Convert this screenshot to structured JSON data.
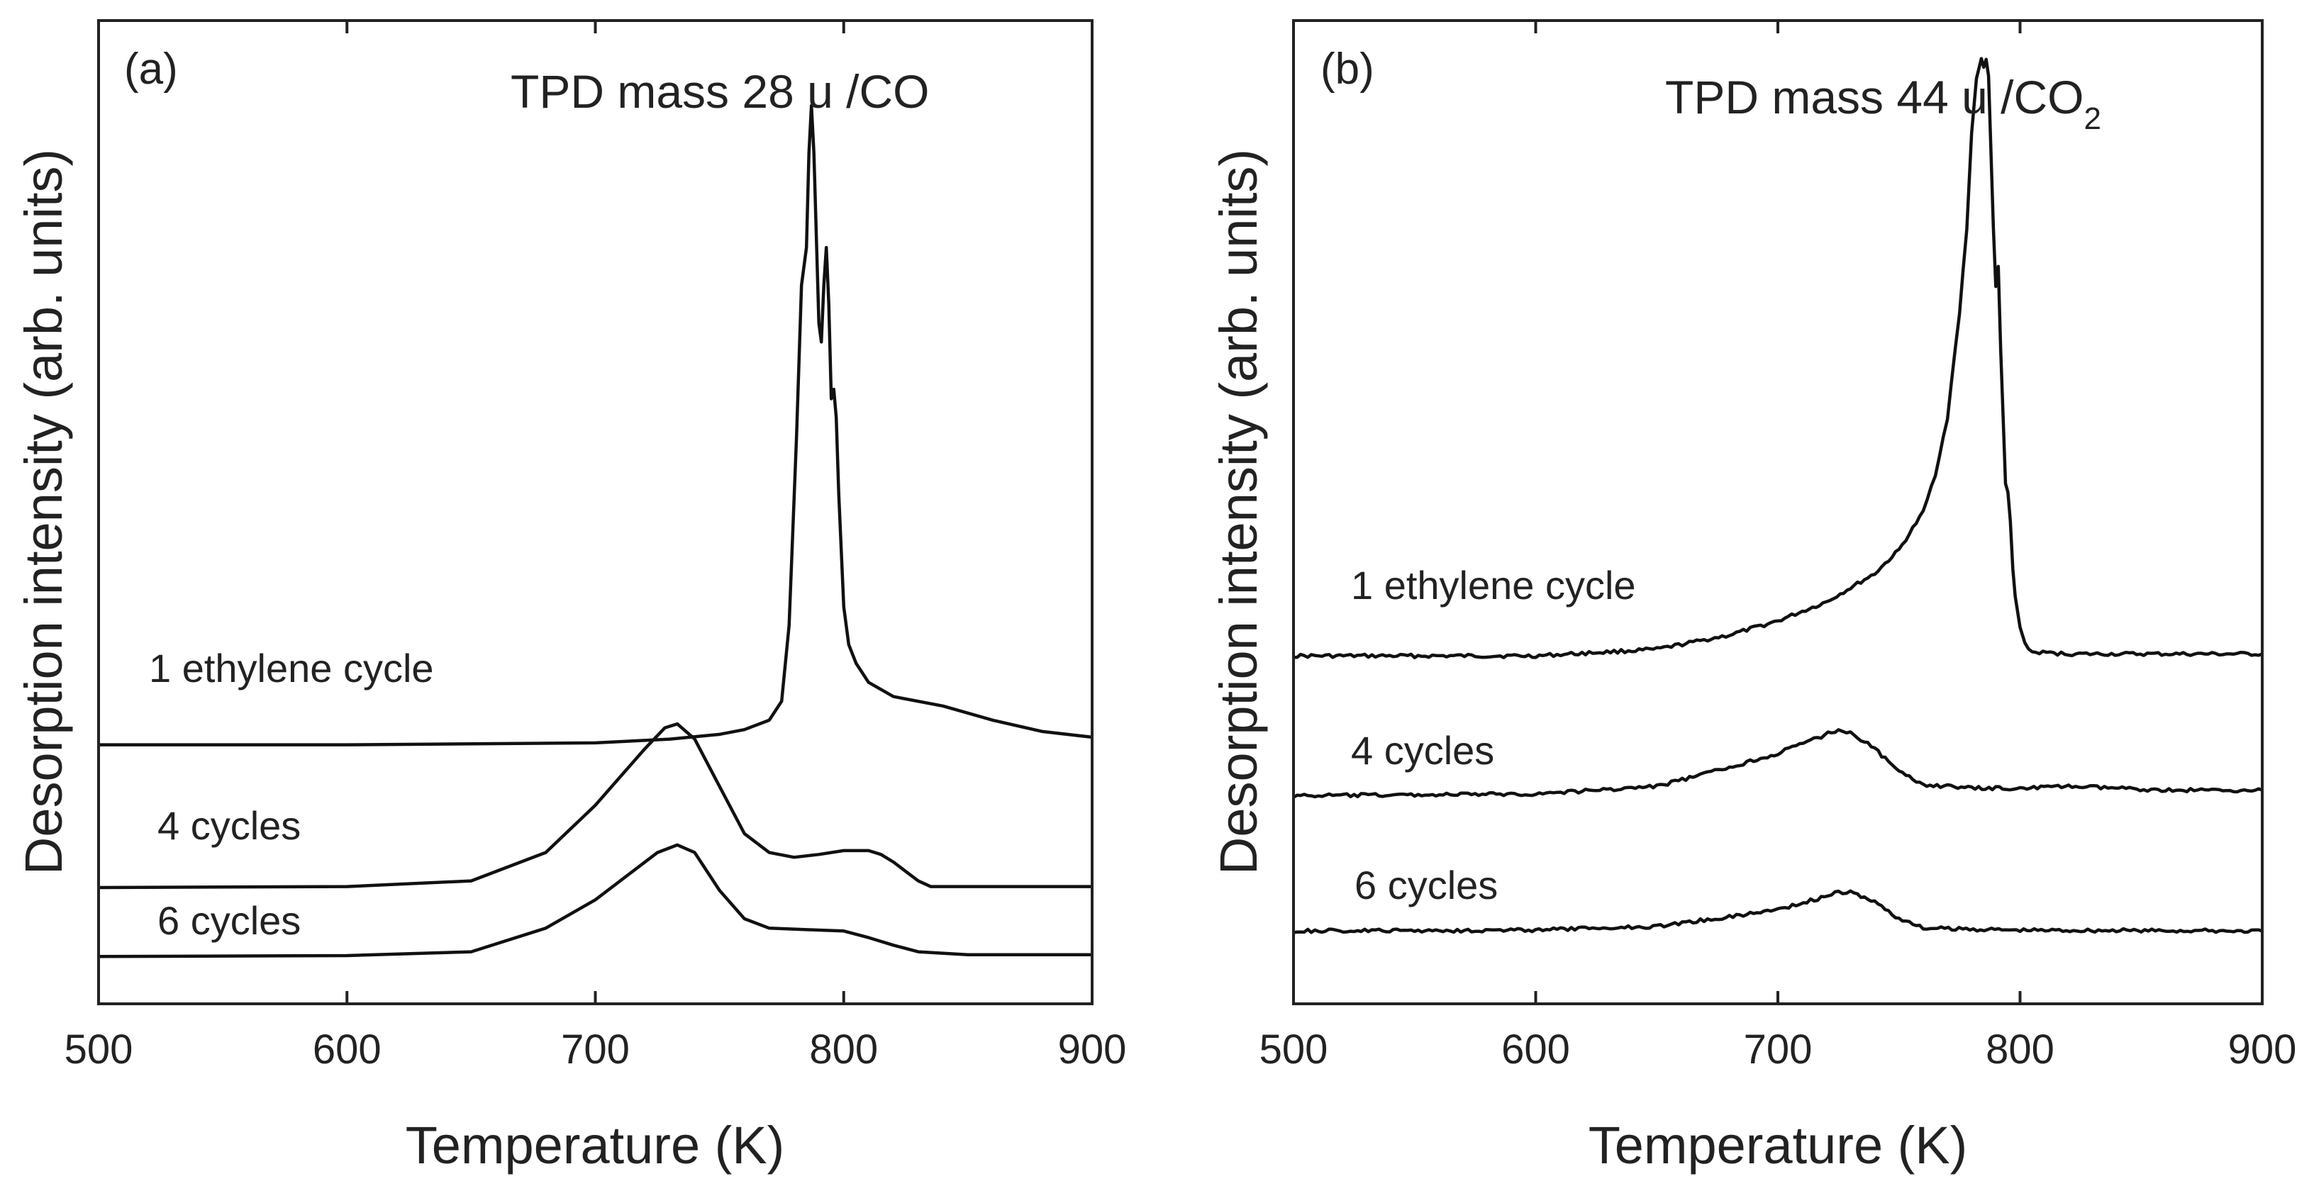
{
  "chart_data": [
    {
      "panel": "(a)",
      "type": "line",
      "title": "TPD mass 28 u /CO",
      "xlabel": "Temperature (K)",
      "ylabel": "Desorption intensity (arb. units)",
      "xlim": [
        500,
        900
      ],
      "ylim": [
        0,
        1.04
      ],
      "xticks": [
        500,
        600,
        700,
        800,
        900
      ],
      "y_ticks_shown": false,
      "series": [
        {
          "name": "1 ethylene cycle",
          "x": [
            500,
            600,
            700,
            730,
            750,
            760,
            770,
            775,
            778,
            781,
            783,
            785,
            786,
            787,
            788,
            790,
            791,
            792,
            793,
            794,
            795,
            796,
            797,
            798,
            800,
            802,
            805,
            810,
            820,
            840,
            860,
            880,
            900
          ],
          "y": [
            0.274,
            0.274,
            0.276,
            0.28,
            0.285,
            0.29,
            0.3,
            0.32,
            0.4,
            0.6,
            0.76,
            0.8,
            0.9,
            0.95,
            0.9,
            0.72,
            0.7,
            0.76,
            0.8,
            0.74,
            0.64,
            0.65,
            0.62,
            0.54,
            0.42,
            0.38,
            0.36,
            0.34,
            0.325,
            0.315,
            0.3,
            0.288,
            0.282
          ]
        },
        {
          "name": "4 cycles",
          "x": [
            500,
            600,
            650,
            680,
            700,
            710,
            720,
            728,
            733,
            740,
            750,
            760,
            770,
            780,
            790,
            800,
            810,
            815,
            820,
            825,
            830,
            835,
            850,
            900
          ],
          "y": [
            0.123,
            0.124,
            0.13,
            0.16,
            0.21,
            0.24,
            0.27,
            0.292,
            0.296,
            0.28,
            0.23,
            0.18,
            0.16,
            0.155,
            0.158,
            0.162,
            0.162,
            0.158,
            0.15,
            0.14,
            0.13,
            0.124,
            0.124,
            0.124
          ]
        },
        {
          "name": "6 cycles",
          "x": [
            500,
            600,
            650,
            680,
            700,
            715,
            725,
            733,
            740,
            750,
            760,
            770,
            790,
            800,
            810,
            820,
            830,
            850,
            900
          ],
          "y": [
            0.05,
            0.051,
            0.055,
            0.08,
            0.11,
            0.14,
            0.16,
            0.168,
            0.16,
            0.12,
            0.09,
            0.08,
            0.078,
            0.077,
            0.07,
            0.062,
            0.055,
            0.052,
            0.052
          ]
        }
      ],
      "annotations": [
        {
          "text": "(a)"
        },
        {
          "text": "1 ethylene cycle"
        },
        {
          "text": "4 cycles"
        },
        {
          "text": "6 cycles"
        }
      ]
    },
    {
      "panel": "(b)",
      "type": "line",
      "title": "TPD mass 44 u /CO2",
      "title_main": "TPD mass 44 u /CO",
      "title_subscript": "2",
      "xlabel": "Temperature (K)",
      "ylabel": "Desorption intensity (arb. units)",
      "xlim": [
        500,
        900
      ],
      "ylim": [
        0,
        1.04
      ],
      "xticks": [
        500,
        600,
        700,
        800,
        900
      ],
      "y_ticks_shown": false,
      "series": [
        {
          "name": "1 ethylene cycle",
          "x": [
            500,
            600,
            650,
            680,
            700,
            720,
            740,
            750,
            760,
            765,
            770,
            775,
            778,
            780,
            782,
            784,
            785,
            786,
            787,
            788,
            789,
            790,
            791,
            792,
            793,
            794,
            795,
            796,
            797,
            798,
            800,
            802,
            805,
            820,
            860,
            900
          ],
          "y": [
            0.368,
            0.368,
            0.375,
            0.39,
            0.405,
            0.425,
            0.455,
            0.48,
            0.52,
            0.56,
            0.62,
            0.73,
            0.82,
            0.92,
            0.98,
            1.0,
            0.99,
            1.0,
            0.98,
            0.9,
            0.82,
            0.76,
            0.78,
            0.69,
            0.62,
            0.55,
            0.54,
            0.51,
            0.46,
            0.43,
            0.4,
            0.38,
            0.372,
            0.37,
            0.37,
            0.37
          ]
        },
        {
          "name": "4 cycles",
          "x": [
            500,
            600,
            650,
            680,
            700,
            715,
            725,
            730,
            740,
            750,
            760,
            780,
            800,
            820,
            860,
            900
          ],
          "y": [
            0.22,
            0.222,
            0.23,
            0.25,
            0.265,
            0.28,
            0.29,
            0.287,
            0.27,
            0.245,
            0.232,
            0.228,
            0.228,
            0.23,
            0.226,
            0.226
          ]
        },
        {
          "name": "6 cycles",
          "x": [
            500,
            600,
            650,
            680,
            700,
            715,
            725,
            730,
            740,
            750,
            760,
            800,
            900
          ],
          "y": [
            0.077,
            0.078,
            0.082,
            0.092,
            0.1,
            0.11,
            0.118,
            0.118,
            0.108,
            0.09,
            0.08,
            0.078,
            0.077
          ]
        }
      ],
      "annotations": [
        {
          "text": "(b)"
        },
        {
          "text": "1 ethylene cycle"
        },
        {
          "text": "4 cycles"
        },
        {
          "text": "6 cycles"
        }
      ]
    }
  ]
}
